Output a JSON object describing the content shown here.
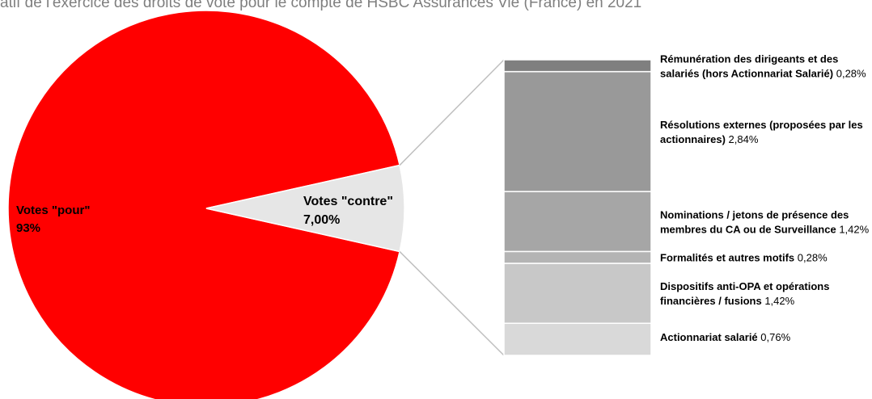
{
  "title": "atif de l'exercice des droits de vote pour le compte de HSBC Assurances Vie (France) en 2021",
  "colors": {
    "pour": "#ff0000",
    "contre": "#e6e6e6",
    "connector": "#bfbfbf",
    "label_text": "#000000"
  },
  "chart_data": [
    {
      "type": "pie",
      "slices": [
        {
          "label": "Votes \"pour\"",
          "value_label": "93%",
          "value": 93.0,
          "color": "#ff0000"
        },
        {
          "label": "Votes \"contre\"",
          "value_label": "7,00%",
          "value": 7.0,
          "color": "#e6e6e6"
        }
      ]
    },
    {
      "type": "bar",
      "stacked": true,
      "orientation": "vertical",
      "breakdown_of": "Votes \"contre\"",
      "segments": [
        {
          "label": "Actionnariat salarié",
          "value_label": "0,76%",
          "value": 0.76,
          "color": "#d9d9d9"
        },
        {
          "label": "Dispositifs anti-OPA et opérations financières / fusions",
          "value_label": "1,42%",
          "value": 1.42,
          "color": "#c8c8c8"
        },
        {
          "label": "Formalités et autres motifs",
          "value_label": "0,28%",
          "value": 0.28,
          "color": "#b4b4b4"
        },
        {
          "label": "Nominations / jetons de présence des membres du CA ou de Surveillance",
          "value_label": "1,42%",
          "value": 1.42,
          "color": "#a6a6a6"
        },
        {
          "label": "Résolutions externes (proposées par les actionnaires)",
          "value_label": "2,84%",
          "value": 2.84,
          "color": "#999999"
        },
        {
          "label": "Rémunération des dirigeants et des salariés (hors Actionnariat Salarié)",
          "value_label": "0,28%",
          "value": 0.28,
          "color": "#7f7f7f"
        }
      ]
    }
  ]
}
